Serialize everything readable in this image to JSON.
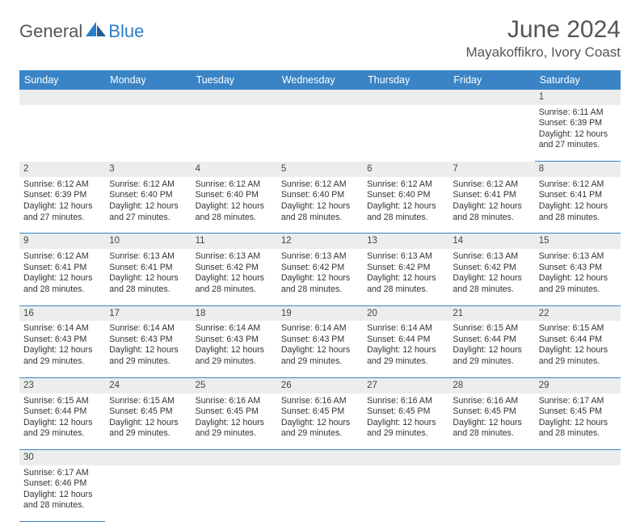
{
  "logo": {
    "text1": "General",
    "text2": "Blue",
    "color1": "#666666",
    "color2": "#2a7fc9"
  },
  "title": "June 2024",
  "location": "Mayakoffikro, Ivory Coast",
  "header_bg": "#3a84c5",
  "header_text": "#ffffff",
  "daynum_bg": "#eceded",
  "border_color": "#3a84c5",
  "weekdays": [
    "Sunday",
    "Monday",
    "Tuesday",
    "Wednesday",
    "Thursday",
    "Friday",
    "Saturday"
  ],
  "weeks": [
    [
      null,
      null,
      null,
      null,
      null,
      null,
      {
        "n": "1",
        "sr": "6:11 AM",
        "ss": "6:39 PM",
        "dl": "12 hours and 27 minutes."
      }
    ],
    [
      {
        "n": "2",
        "sr": "6:12 AM",
        "ss": "6:39 PM",
        "dl": "12 hours and 27 minutes."
      },
      {
        "n": "3",
        "sr": "6:12 AM",
        "ss": "6:40 PM",
        "dl": "12 hours and 27 minutes."
      },
      {
        "n": "4",
        "sr": "6:12 AM",
        "ss": "6:40 PM",
        "dl": "12 hours and 28 minutes."
      },
      {
        "n": "5",
        "sr": "6:12 AM",
        "ss": "6:40 PM",
        "dl": "12 hours and 28 minutes."
      },
      {
        "n": "6",
        "sr": "6:12 AM",
        "ss": "6:40 PM",
        "dl": "12 hours and 28 minutes."
      },
      {
        "n": "7",
        "sr": "6:12 AM",
        "ss": "6:41 PM",
        "dl": "12 hours and 28 minutes."
      },
      {
        "n": "8",
        "sr": "6:12 AM",
        "ss": "6:41 PM",
        "dl": "12 hours and 28 minutes."
      }
    ],
    [
      {
        "n": "9",
        "sr": "6:12 AM",
        "ss": "6:41 PM",
        "dl": "12 hours and 28 minutes."
      },
      {
        "n": "10",
        "sr": "6:13 AM",
        "ss": "6:41 PM",
        "dl": "12 hours and 28 minutes."
      },
      {
        "n": "11",
        "sr": "6:13 AM",
        "ss": "6:42 PM",
        "dl": "12 hours and 28 minutes."
      },
      {
        "n": "12",
        "sr": "6:13 AM",
        "ss": "6:42 PM",
        "dl": "12 hours and 28 minutes."
      },
      {
        "n": "13",
        "sr": "6:13 AM",
        "ss": "6:42 PM",
        "dl": "12 hours and 28 minutes."
      },
      {
        "n": "14",
        "sr": "6:13 AM",
        "ss": "6:42 PM",
        "dl": "12 hours and 28 minutes."
      },
      {
        "n": "15",
        "sr": "6:13 AM",
        "ss": "6:43 PM",
        "dl": "12 hours and 29 minutes."
      }
    ],
    [
      {
        "n": "16",
        "sr": "6:14 AM",
        "ss": "6:43 PM",
        "dl": "12 hours and 29 minutes."
      },
      {
        "n": "17",
        "sr": "6:14 AM",
        "ss": "6:43 PM",
        "dl": "12 hours and 29 minutes."
      },
      {
        "n": "18",
        "sr": "6:14 AM",
        "ss": "6:43 PM",
        "dl": "12 hours and 29 minutes."
      },
      {
        "n": "19",
        "sr": "6:14 AM",
        "ss": "6:43 PM",
        "dl": "12 hours and 29 minutes."
      },
      {
        "n": "20",
        "sr": "6:14 AM",
        "ss": "6:44 PM",
        "dl": "12 hours and 29 minutes."
      },
      {
        "n": "21",
        "sr": "6:15 AM",
        "ss": "6:44 PM",
        "dl": "12 hours and 29 minutes."
      },
      {
        "n": "22",
        "sr": "6:15 AM",
        "ss": "6:44 PM",
        "dl": "12 hours and 29 minutes."
      }
    ],
    [
      {
        "n": "23",
        "sr": "6:15 AM",
        "ss": "6:44 PM",
        "dl": "12 hours and 29 minutes."
      },
      {
        "n": "24",
        "sr": "6:15 AM",
        "ss": "6:45 PM",
        "dl": "12 hours and 29 minutes."
      },
      {
        "n": "25",
        "sr": "6:16 AM",
        "ss": "6:45 PM",
        "dl": "12 hours and 29 minutes."
      },
      {
        "n": "26",
        "sr": "6:16 AM",
        "ss": "6:45 PM",
        "dl": "12 hours and 29 minutes."
      },
      {
        "n": "27",
        "sr": "6:16 AM",
        "ss": "6:45 PM",
        "dl": "12 hours and 29 minutes."
      },
      {
        "n": "28",
        "sr": "6:16 AM",
        "ss": "6:45 PM",
        "dl": "12 hours and 28 minutes."
      },
      {
        "n": "29",
        "sr": "6:17 AM",
        "ss": "6:45 PM",
        "dl": "12 hours and 28 minutes."
      }
    ],
    [
      {
        "n": "30",
        "sr": "6:17 AM",
        "ss": "6:46 PM",
        "dl": "12 hours and 28 minutes."
      },
      null,
      null,
      null,
      null,
      null,
      null
    ]
  ],
  "labels": {
    "sunrise": "Sunrise:",
    "sunset": "Sunset:",
    "daylight": "Daylight:"
  }
}
